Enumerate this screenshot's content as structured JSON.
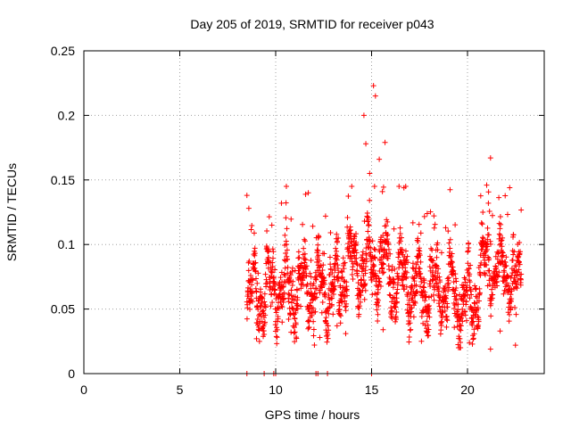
{
  "chart_data": {
    "type": "scatter",
    "title": "Day 205 of 2019, SRMTID for receiver p043",
    "xlabel": "GPS time / hours",
    "ylabel": "SRMTID / TECUs",
    "xlim": [
      0,
      24
    ],
    "ylim": [
      0,
      0.25
    ],
    "xticks": [
      0,
      5,
      10,
      15,
      20
    ],
    "xtick_labels": [
      "0",
      "5",
      "10",
      "15",
      "20"
    ],
    "yticks": [
      0,
      0.05,
      0.1,
      0.15,
      0.2,
      0.25
    ],
    "ytick_labels": [
      "0",
      "0.05",
      "0.1",
      "0.15",
      "0.2",
      "0.25"
    ],
    "grid": true,
    "marker": "+",
    "color": "#ff0000",
    "series": [
      {
        "name": "SRMTID",
        "description": "dense scatter of ~1500 samples between 8.5 h and 22.8 h, values mostly 0.03-0.14, peak ~0.22 near 15.2 h; zero-valued samples near 8.5, 9.4, 9.9, 10.0, 12.1, 12.2, 12.7, 15.0 h",
        "key_points": [
          {
            "x": 8.5,
            "y": 0.138
          },
          {
            "x": 8.6,
            "y": 0.128
          },
          {
            "x": 9.0,
            "y": 0.027
          },
          {
            "x": 9.8,
            "y": 0.115
          },
          {
            "x": 10.3,
            "y": 0.132
          },
          {
            "x": 10.8,
            "y": 0.032
          },
          {
            "x": 11.7,
            "y": 0.14
          },
          {
            "x": 12.3,
            "y": 0.028
          },
          {
            "x": 12.6,
            "y": 0.122
          },
          {
            "x": 13.2,
            "y": 0.037
          },
          {
            "x": 14.6,
            "y": 0.2
          },
          {
            "x": 14.7,
            "y": 0.178
          },
          {
            "x": 14.9,
            "y": 0.155
          },
          {
            "x": 15.1,
            "y": 0.223
          },
          {
            "x": 15.2,
            "y": 0.215
          },
          {
            "x": 15.4,
            "y": 0.166
          },
          {
            "x": 15.6,
            "y": 0.034
          },
          {
            "x": 15.7,
            "y": 0.179
          },
          {
            "x": 17.6,
            "y": 0.025
          },
          {
            "x": 17.9,
            "y": 0.124
          },
          {
            "x": 19.6,
            "y": 0.027
          },
          {
            "x": 20.1,
            "y": 0.024
          },
          {
            "x": 20.8,
            "y": 0.125
          },
          {
            "x": 21.0,
            "y": 0.146
          },
          {
            "x": 21.2,
            "y": 0.167
          },
          {
            "x": 21.2,
            "y": 0.019
          },
          {
            "x": 21.7,
            "y": 0.033
          },
          {
            "x": 22.2,
            "y": 0.144
          },
          {
            "x": 22.5,
            "y": 0.022
          },
          {
            "x": 22.8,
            "y": 0.077
          }
        ],
        "zero_points_x": [
          8.5,
          9.4,
          9.9,
          10.0,
          12.1,
          12.2,
          12.7,
          15.0
        ]
      }
    ]
  }
}
